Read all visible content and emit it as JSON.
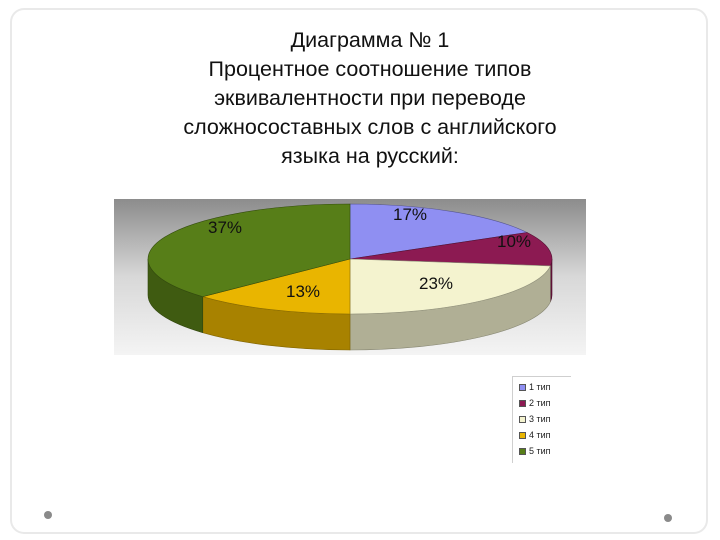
{
  "title_lines": [
    "Диаграмма № 1",
    "Процентное соотношение типов",
    "эквивалентности при переводе",
    "сложносоставных слов с английского",
    "языка на русский:"
  ],
  "chart_data": {
    "type": "pie",
    "style": "3d",
    "categories": [
      "1 тип",
      "2 тип",
      "3 тип",
      "4 тип",
      "5 тип"
    ],
    "values": [
      17,
      10,
      23,
      13,
      37
    ],
    "labels": [
      "17%",
      "10%",
      "23%",
      "13%",
      "37%"
    ],
    "colors": [
      "#8f8ff2",
      "#8c1a52",
      "#f4f3cf",
      "#e9b500",
      "#577e18"
    ],
    "legend_position": "bottom-right"
  }
}
